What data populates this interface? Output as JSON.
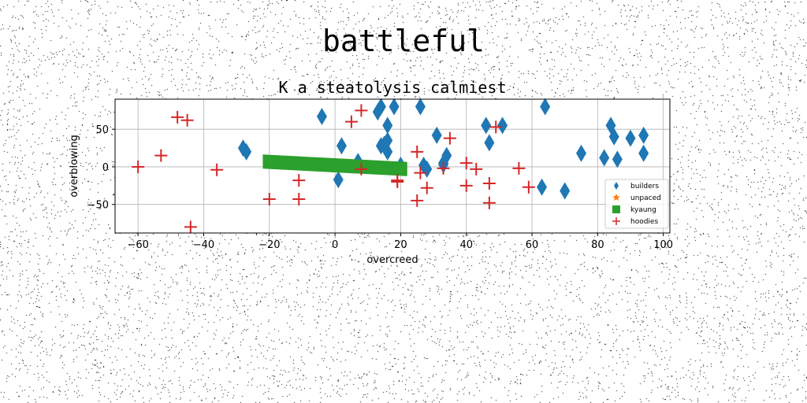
{
  "figure": {
    "suptitle": "battleful"
  },
  "chart_data": {
    "type": "scatter",
    "title": "K a steatolysis calmiest",
    "xlabel": "overcreed",
    "ylabel": "overblowing",
    "xlim": [
      -67,
      102
    ],
    "ylim": [
      -88,
      90
    ],
    "xticks": [
      -60,
      -40,
      -20,
      0,
      20,
      40,
      60,
      80,
      100
    ],
    "yticks": [
      -50,
      0,
      50
    ],
    "xtick_labels": [
      "−60",
      "−40",
      "−20",
      "0",
      "20",
      "40",
      "60",
      "80",
      "100"
    ],
    "ytick_labels": [
      "−50",
      "0",
      "50"
    ],
    "grid": true,
    "legend_position": "lower-right",
    "series": [
      {
        "name": "builders",
        "marker": "thin_diamond",
        "color": "#1f77b4",
        "x": [
          -4,
          -28,
          -27,
          2,
          1,
          7,
          13,
          14,
          15,
          14,
          16,
          16,
          18,
          16,
          20,
          26,
          27,
          28,
          31,
          33,
          34,
          33,
          46,
          47,
          51,
          63,
          64,
          70,
          75,
          82,
          84,
          85,
          86,
          90,
          94,
          94
        ],
        "y": [
          67,
          25,
          20,
          28,
          -17,
          7,
          73,
          80,
          30,
          28,
          55,
          35,
          80,
          20,
          2,
          80,
          2,
          -3,
          42,
          5,
          15,
          3,
          55,
          32,
          55,
          -27,
          80,
          -32,
          18,
          12,
          55,
          40,
          10,
          38,
          42,
          18
        ]
      },
      {
        "name": "unpaced",
        "marker": "star",
        "color": "#ff7f0e",
        "x": [],
        "y": []
      },
      {
        "name": "kyaung",
        "marker": "square",
        "color": "#2ca02c",
        "x": [
          -22,
          22
        ],
        "y": [
          6,
          -4
        ]
      },
      {
        "name": "hoodies",
        "marker": "plus",
        "color": "#d62728",
        "x": [
          -60,
          -53,
          -48,
          -45,
          -44,
          -36,
          -20,
          -11,
          -11,
          5,
          8,
          8,
          19,
          19,
          25,
          25,
          26,
          28,
          33,
          35,
          40,
          40,
          43,
          47,
          47,
          49,
          56,
          59
        ],
        "y": [
          0,
          15,
          66,
          62,
          -80,
          -4,
          -43,
          -18,
          -43,
          60,
          75,
          -3,
          -18,
          -20,
          -45,
          20,
          -8,
          -28,
          -2,
          38,
          5,
          -25,
          -3,
          -22,
          -48,
          53,
          -2,
          -27
        ]
      }
    ]
  }
}
